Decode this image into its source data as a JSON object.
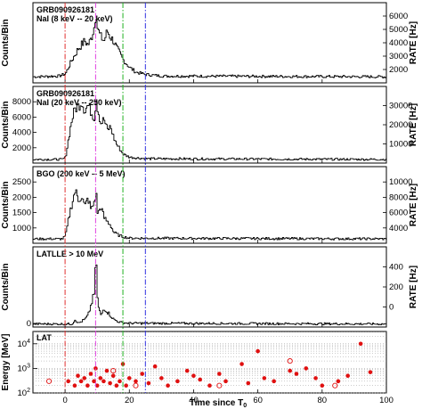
{
  "chart_data": {
    "type": "line",
    "xlabel": "Time since T",
    "xlabel_sub": "0",
    "xlim": [
      -10,
      100
    ],
    "x_ticks": [
      0,
      20,
      40,
      60,
      80,
      100
    ],
    "vlines": [
      {
        "x": 0,
        "color": "#e03030",
        "dash": "6,2,1.5,2"
      },
      {
        "x": 9.5,
        "color": "#e040e0",
        "dash": "6,2,1.5,2"
      },
      {
        "x": 18,
        "color": "#20b020",
        "dash": "6,2,1.5,2"
      },
      {
        "x": 25,
        "color": "#3030e0",
        "dash": "6,2,1.5,2"
      }
    ],
    "panels": [
      {
        "title": [
          "GRB090926181",
          "NaI (8 keV -- 20 keV)"
        ],
        "ylabel_left": "Counts/Bin",
        "ylabel_right": "RATE [Hz]",
        "right_ticks": [
          "2000",
          "3000",
          "4000",
          "5000",
          "6000"
        ],
        "left_ticks": [],
        "baseline": 0.08,
        "curve": [
          [
            -10,
            0.08
          ],
          [
            -2,
            0.09
          ],
          [
            0,
            0.12
          ],
          [
            2,
            0.3
          ],
          [
            4,
            0.45
          ],
          [
            6,
            0.55
          ],
          [
            7,
            0.5
          ],
          [
            8,
            0.58
          ],
          [
            9,
            0.75
          ],
          [
            9.5,
            0.97
          ],
          [
            10,
            0.7
          ],
          [
            11,
            0.6
          ],
          [
            12,
            0.55
          ],
          [
            13,
            0.68
          ],
          [
            14,
            0.6
          ],
          [
            15,
            0.55
          ],
          [
            16,
            0.45
          ],
          [
            18,
            0.3
          ],
          [
            20,
            0.2
          ],
          [
            22,
            0.14
          ],
          [
            25,
            0.11
          ],
          [
            30,
            0.09
          ],
          [
            100,
            0.08
          ]
        ]
      },
      {
        "title": [
          "GRB090926181",
          "NaI (20 keV -- 250 keV)"
        ],
        "ylabel_left": "Counts/Bin",
        "ylabel_right": "RATE [Hz]",
        "left_ticks": [
          "2000",
          "4000",
          "6000",
          "8000"
        ],
        "right_ticks": [
          "10000",
          "20000",
          "30000"
        ],
        "baseline": 0.05,
        "curve": [
          [
            -10,
            0.05
          ],
          [
            -1,
            0.05
          ],
          [
            0,
            0.08
          ],
          [
            1,
            0.35
          ],
          [
            2,
            0.6
          ],
          [
            3,
            0.75
          ],
          [
            4,
            0.78
          ],
          [
            5,
            0.85
          ],
          [
            6,
            0.72
          ],
          [
            7,
            0.8
          ],
          [
            8,
            0.7
          ],
          [
            9,
            0.62
          ],
          [
            9.5,
            0.92
          ],
          [
            10,
            0.75
          ],
          [
            11,
            0.55
          ],
          [
            12,
            0.6
          ],
          [
            13,
            0.45
          ],
          [
            14,
            0.5
          ],
          [
            15,
            0.35
          ],
          [
            16,
            0.25
          ],
          [
            18,
            0.12
          ],
          [
            20,
            0.08
          ],
          [
            25,
            0.06
          ],
          [
            100,
            0.05
          ]
        ]
      },
      {
        "title": [
          "BGO (200 keV -- 5 MeV)"
        ],
        "ylabel_left": "Counts/Bin",
        "ylabel_right": "RATE [Hz]",
        "left_ticks": [
          "1000",
          "1500",
          "2000",
          "2500"
        ],
        "right_ticks": [
          "4000",
          "6000",
          "8000",
          "10000"
        ],
        "baseline": 0.06,
        "curve": [
          [
            -10,
            0.06
          ],
          [
            -1,
            0.06
          ],
          [
            0,
            0.1
          ],
          [
            1,
            0.35
          ],
          [
            2,
            0.55
          ],
          [
            3,
            0.72
          ],
          [
            4,
            0.6
          ],
          [
            5,
            0.65
          ],
          [
            6,
            0.5
          ],
          [
            7,
            0.62
          ],
          [
            8,
            0.45
          ],
          [
            9,
            0.58
          ],
          [
            9.5,
            0.7
          ],
          [
            10,
            0.4
          ],
          [
            11,
            0.5
          ],
          [
            12,
            0.35
          ],
          [
            13,
            0.3
          ],
          [
            14,
            0.25
          ],
          [
            15,
            0.15
          ],
          [
            17,
            0.1
          ],
          [
            20,
            0.07
          ],
          [
            100,
            0.06
          ]
        ]
      },
      {
        "title": [
          "LATLLE > 10 MeV"
        ],
        "ylabel_left": "Counts/Bin",
        "ylabel_right": "RATE [Hz]",
        "left_ticks": [
          "0"
        ],
        "right_ticks": [
          "0",
          "200",
          "400"
        ],
        "baseline": 0.04,
        "curve": [
          [
            -10,
            0.04
          ],
          [
            2,
            0.04
          ],
          [
            3,
            0.1
          ],
          [
            4,
            0.05
          ],
          [
            6,
            0.1
          ],
          [
            7,
            0.15
          ],
          [
            8,
            0.3
          ],
          [
            9,
            0.45
          ],
          [
            9.5,
            0.98
          ],
          [
            10,
            0.3
          ],
          [
            11,
            0.15
          ],
          [
            12,
            0.25
          ],
          [
            13,
            0.2
          ],
          [
            14,
            0.15
          ],
          [
            15,
            0.1
          ],
          [
            17,
            0.06
          ],
          [
            20,
            0.05
          ],
          [
            100,
            0.04
          ]
        ]
      }
    ],
    "lat": {
      "title": "LAT",
      "ylabel": "Energy [MeV]",
      "ylog": [
        2,
        4.5
      ],
      "yticks_exp": [
        2,
        3,
        4
      ],
      "marker_color": "#e01010",
      "filled_points": [
        [
          1,
          300
        ],
        [
          3,
          200
        ],
        [
          4,
          500
        ],
        [
          5,
          300
        ],
        [
          6,
          400
        ],
        [
          7,
          200
        ],
        [
          8,
          600
        ],
        [
          9,
          300
        ],
        [
          9.5,
          1000
        ],
        [
          10,
          200
        ],
        [
          11,
          400
        ],
        [
          12,
          300
        ],
        [
          13,
          800
        ],
        [
          14,
          250
        ],
        [
          15,
          500
        ],
        [
          16,
          200
        ],
        [
          17,
          300
        ],
        [
          18,
          1500
        ],
        [
          19,
          200
        ],
        [
          20,
          400
        ],
        [
          22,
          300
        ],
        [
          24,
          600
        ],
        [
          26,
          250
        ],
        [
          28,
          1200
        ],
        [
          30,
          400
        ],
        [
          32,
          200
        ],
        [
          35,
          300
        ],
        [
          38,
          800
        ],
        [
          40,
          500
        ],
        [
          42,
          350
        ],
        [
          45,
          200
        ],
        [
          48,
          600
        ],
        [
          50,
          300
        ],
        [
          55,
          1500
        ],
        [
          57,
          250
        ],
        [
          60,
          5000
        ],
        [
          62,
          400
        ],
        [
          65,
          300
        ],
        [
          70,
          800
        ],
        [
          72,
          600
        ],
        [
          75,
          1000
        ],
        [
          78,
          400
        ],
        [
          80,
          200
        ],
        [
          85,
          300
        ],
        [
          88,
          500
        ],
        [
          92,
          10000
        ],
        [
          95,
          700
        ]
      ],
      "open_points": [
        [
          -5,
          300
        ],
        [
          15,
          800
        ],
        [
          22,
          200
        ],
        [
          48,
          200
        ],
        [
          70,
          2000
        ],
        [
          84,
          200
        ]
      ]
    }
  }
}
